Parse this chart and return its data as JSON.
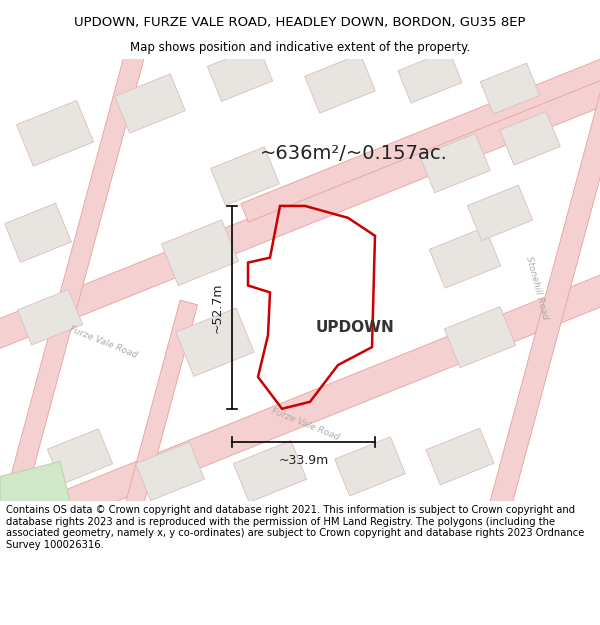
{
  "title_line1": "UPDOWN, FURZE VALE ROAD, HEADLEY DOWN, BORDON, GU35 8EP",
  "title_line2": "Map shows position and indicative extent of the property.",
  "area_text": "~636m²/~0.157ac.",
  "property_label": "UPDOWN",
  "dim_width": "~33.9m",
  "dim_height": "~52.7m",
  "footer_text": "Contains OS data © Crown copyright and database right 2021. This information is subject to Crown copyright and database rights 2023 and is reproduced with the permission of HM Land Registry. The polygons (including the associated geometry, namely x, y co-ordinates) are subject to Crown copyright and database rights 2023 Ordnance Survey 100026316.",
  "bg_color": "#f7f4f1",
  "road_fill": "#f5d0d0",
  "road_edge": "#e8a0a0",
  "building_fill": "#e8e4e0",
  "building_edge": "#d8c0c0",
  "green_fill": "#d0e8c8",
  "green_edge": "#b0d0a8",
  "property_edge": "#cc0000",
  "title_fontsize": 9.5,
  "subtitle_fontsize": 8.5,
  "footer_fontsize": 7.2,
  "road_lw": 0.6,
  "building_lw": 0.6,
  "prop_lw": 1.8
}
